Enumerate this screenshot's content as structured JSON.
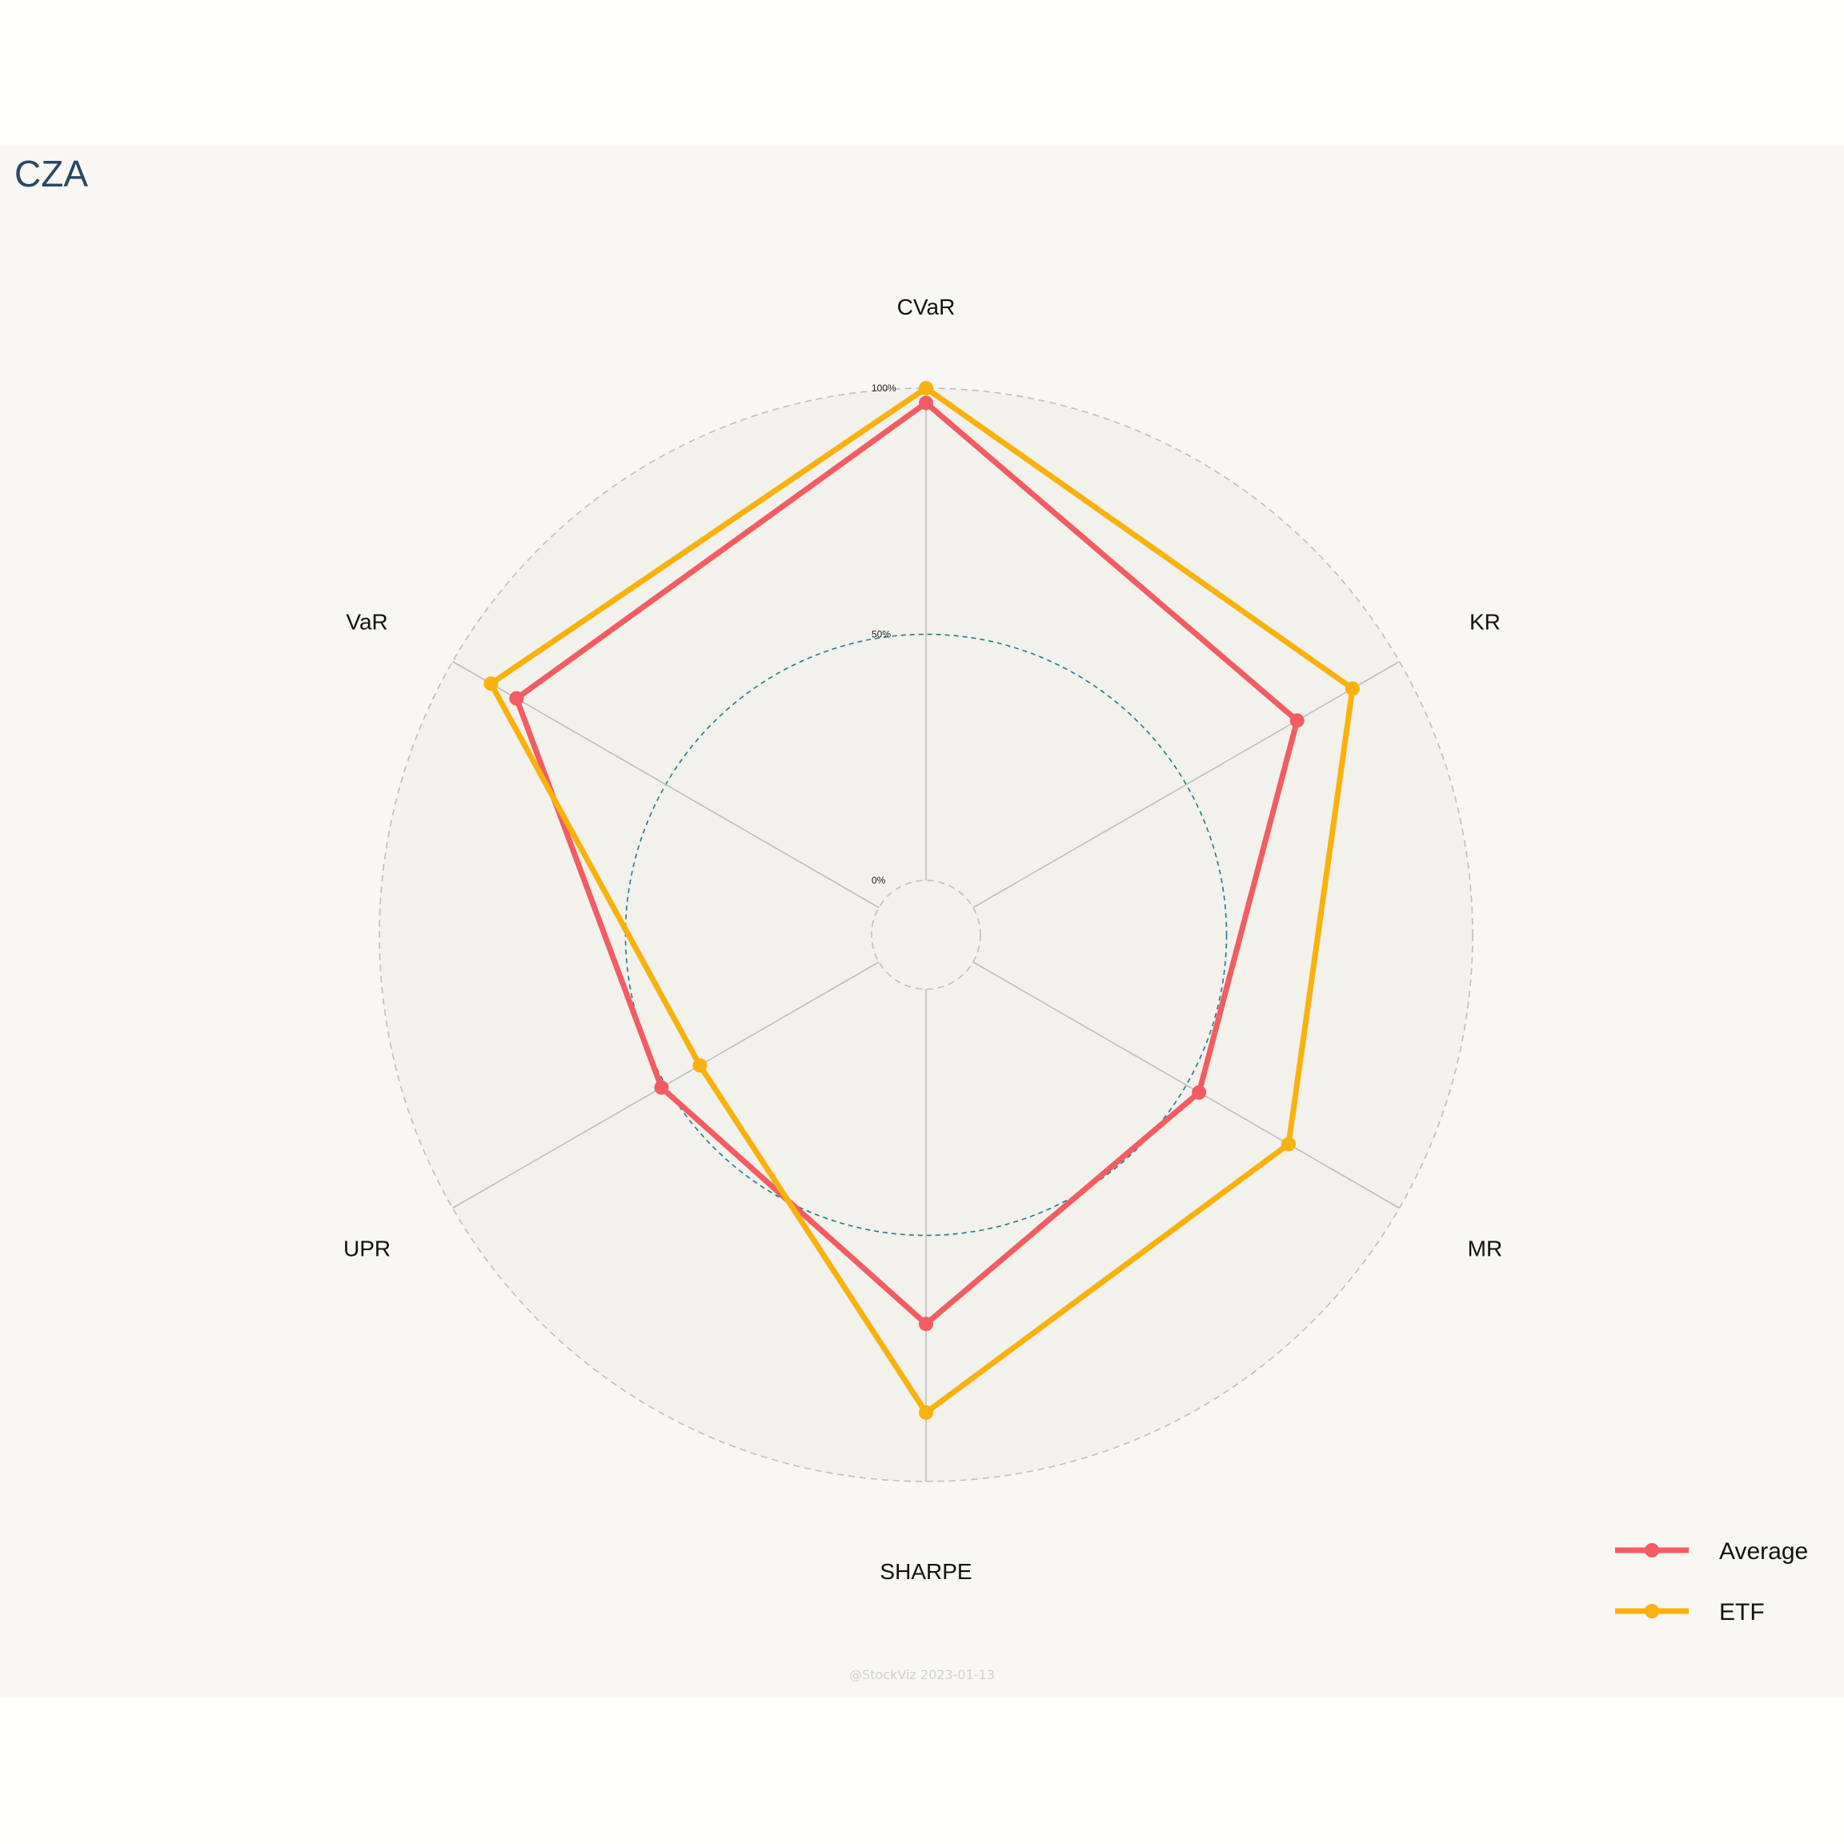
{
  "chart_data": {
    "type": "radar",
    "title": "CZA",
    "axes": [
      "CVaR",
      "KR",
      "MR",
      "SHARPE",
      "UPR",
      "VaR"
    ],
    "rlim": [
      0,
      100
    ],
    "radial_ticks": [
      {
        "value": 0,
        "label": "0%"
      },
      {
        "value": 50,
        "label": "50%"
      },
      {
        "value": 100,
        "label": "100%"
      }
    ],
    "series": [
      {
        "name": "Average",
        "color": "#f25c62",
        "values": [
          97,
          76,
          53,
          68,
          51,
          85
        ]
      },
      {
        "name": "ETF",
        "color": "#f9b10d",
        "values": [
          100,
          89,
          74,
          86,
          42,
          91
        ]
      }
    ],
    "legend_position": "bottom-right",
    "credit": "@StockViz 2023-01-13"
  }
}
